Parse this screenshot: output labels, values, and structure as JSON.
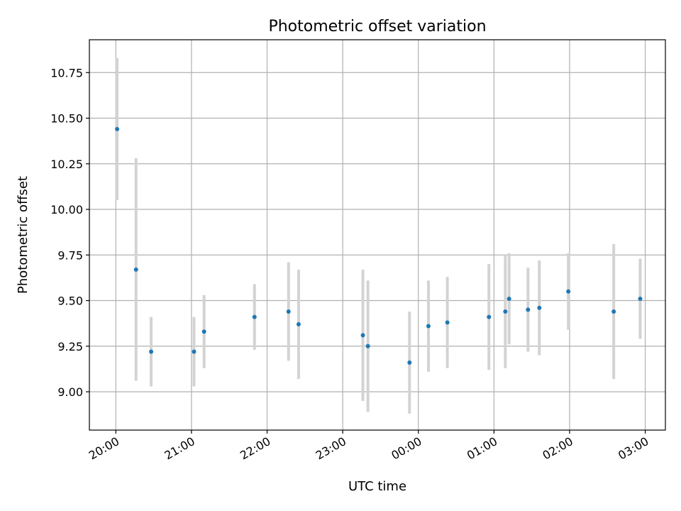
{
  "chart_data": {
    "type": "scatter",
    "title": "Photometric offset variation",
    "xlabel": "UTC time",
    "ylabel": "Photometric offset",
    "grid": true,
    "xticks": [
      "20:00",
      "21:00",
      "22:00",
      "23:00",
      "00:00",
      "01:00",
      "02:00",
      "03:00"
    ],
    "yticks": [
      "9.00",
      "9.25",
      "9.50",
      "9.75",
      "10.00",
      "10.25",
      "10.50",
      "10.75"
    ],
    "xlim": [
      "19:39",
      "03:16"
    ],
    "ylim": [
      8.79,
      10.93
    ],
    "colors": {
      "points": "#1f77b4",
      "errorbars": "#d3d3d3",
      "grid": "#b0b0b0"
    },
    "points": [
      {
        "x": "20:01",
        "y": 10.44,
        "err": 0.39
      },
      {
        "x": "20:16",
        "y": 9.67,
        "err": 0.61
      },
      {
        "x": "20:28",
        "y": 9.22,
        "err": 0.19
      },
      {
        "x": "21:02",
        "y": 9.22,
        "err": 0.19
      },
      {
        "x": "21:10",
        "y": 9.33,
        "err": 0.2
      },
      {
        "x": "21:50",
        "y": 9.41,
        "err": 0.18
      },
      {
        "x": "22:17",
        "y": 9.44,
        "err": 0.27
      },
      {
        "x": "22:25",
        "y": 9.37,
        "err": 0.3
      },
      {
        "x": "23:16",
        "y": 9.31,
        "err": 0.36
      },
      {
        "x": "23:20",
        "y": 9.25,
        "err": 0.36
      },
      {
        "x": "23:53",
        "y": 9.16,
        "err": 0.28
      },
      {
        "x": "00:08",
        "y": 9.36,
        "err": 0.25
      },
      {
        "x": "00:23",
        "y": 9.38,
        "err": 0.25
      },
      {
        "x": "00:56",
        "y": 9.41,
        "err": 0.29
      },
      {
        "x": "01:09",
        "y": 9.44,
        "err": 0.31
      },
      {
        "x": "01:12",
        "y": 9.51,
        "err": 0.25
      },
      {
        "x": "01:27",
        "y": 9.45,
        "err": 0.23
      },
      {
        "x": "01:36",
        "y": 9.46,
        "err": 0.26
      },
      {
        "x": "01:59",
        "y": 9.55,
        "err": 0.21
      },
      {
        "x": "02:35",
        "y": 9.44,
        "err": 0.37
      },
      {
        "x": "02:56",
        "y": 9.51,
        "err": 0.22
      }
    ]
  }
}
